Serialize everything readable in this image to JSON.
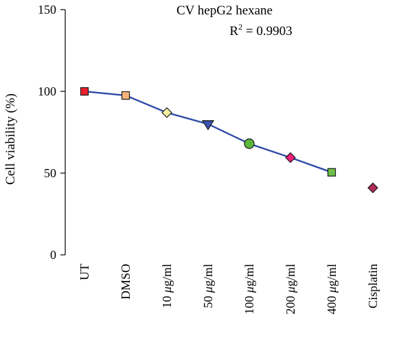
{
  "chart_data": {
    "type": "line",
    "title": "CV hepG2 hexane",
    "annotation": {
      "prefix": "R",
      "superscript": "2",
      "suffix": " = 0.9903"
    },
    "ylabel": "Cell viability (%)",
    "xlabel": "",
    "ylim": [
      0,
      150
    ],
    "yticks": [
      0,
      50,
      100,
      150
    ],
    "grid": false,
    "categories": [
      {
        "prefix": "UT",
        "mu": "",
        "suffix": ""
      },
      {
        "prefix": "DMSO",
        "mu": "",
        "suffix": ""
      },
      {
        "prefix": "10 ",
        "mu": "μ",
        "suffix": "g/ml"
      },
      {
        "prefix": "50 ",
        "mu": "μ",
        "suffix": "g/ml"
      },
      {
        "prefix": "100 ",
        "mu": "μ",
        "suffix": "g/ml"
      },
      {
        "prefix": "200 ",
        "mu": "μ",
        "suffix": "g/ml"
      },
      {
        "prefix": "400 ",
        "mu": "μ",
        "suffix": "g/ml"
      },
      {
        "prefix": "Cisplatin",
        "mu": "",
        "suffix": ""
      }
    ],
    "series": [
      {
        "line_color": "#2f4aa8",
        "line_points": 7,
        "values": [
          100,
          97.5,
          87,
          80,
          68,
          59.5,
          50.5,
          41
        ],
        "markers": [
          {
            "shape": "square",
            "color": "#e8202a"
          },
          {
            "shape": "square",
            "color": "#f7b47a"
          },
          {
            "shape": "diamond",
            "color": "#f8f0a0"
          },
          {
            "shape": "triangle-down",
            "color": "#3b55b0"
          },
          {
            "shape": "circle",
            "color": "#5cb83a"
          },
          {
            "shape": "diamond",
            "color": "#ee1f7a"
          },
          {
            "shape": "square",
            "color": "#6cc04a"
          },
          {
            "shape": "diamond",
            "color": "#b02a5a"
          }
        ]
      }
    ]
  }
}
